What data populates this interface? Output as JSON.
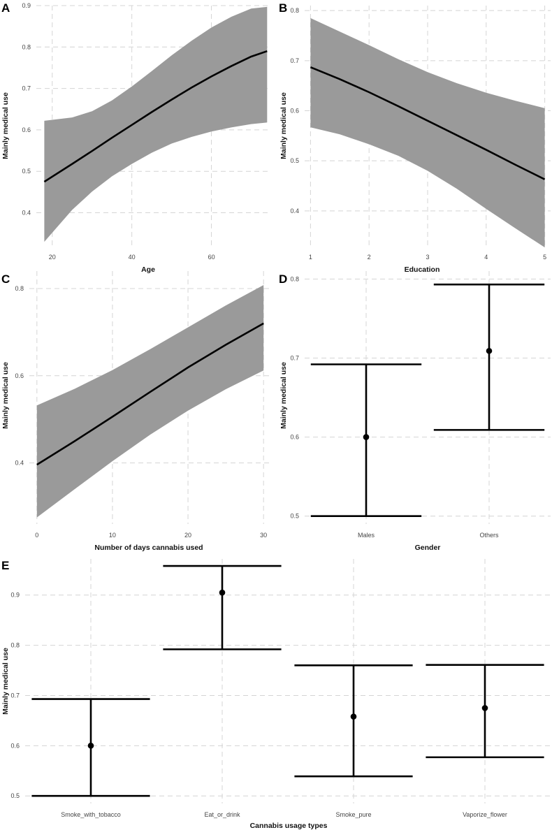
{
  "chart_data": [
    {
      "panel": "A",
      "type": "line",
      "xlabel": "Age",
      "ylabel": "Mainly medical use",
      "xlim": [
        16,
        75
      ],
      "ylim": [
        0.32,
        0.9
      ],
      "xticks": [
        20,
        40,
        60
      ],
      "yticks": [
        0.4,
        0.5,
        0.6,
        0.7,
        0.8,
        0.9
      ],
      "grid": true,
      "series": [
        {
          "x": [
            18,
            25,
            30,
            35,
            40,
            45,
            50,
            55,
            60,
            65,
            70,
            74
          ],
          "y": [
            0.475,
            0.518,
            0.549,
            0.581,
            0.612,
            0.643,
            0.673,
            0.702,
            0.729,
            0.754,
            0.777,
            0.79
          ],
          "lower": [
            0.33,
            0.407,
            0.451,
            0.488,
            0.518,
            0.545,
            0.567,
            0.583,
            0.596,
            0.606,
            0.614,
            0.618
          ],
          "upper": [
            0.622,
            0.63,
            0.645,
            0.671,
            0.705,
            0.742,
            0.78,
            0.815,
            0.847,
            0.873,
            0.893,
            0.897
          ]
        }
      ]
    },
    {
      "panel": "B",
      "type": "line",
      "xlabel": "Education",
      "ylabel": "Mainly medical use",
      "xlim": [
        0.9,
        5.1
      ],
      "ylim": [
        0.33,
        0.81
      ],
      "xticks": [
        1,
        2,
        3,
        4,
        5
      ],
      "yticks": [
        0.4,
        0.5,
        0.6,
        0.7,
        0.8
      ],
      "grid": true,
      "series": [
        {
          "x": [
            1,
            1.5,
            2,
            2.5,
            3,
            3.5,
            4,
            4.5,
            5
          ],
          "y": [
            0.687,
            0.663,
            0.637,
            0.609,
            0.58,
            0.551,
            0.522,
            0.492,
            0.463
          ],
          "lower": [
            0.567,
            0.553,
            0.533,
            0.51,
            0.48,
            0.444,
            0.404,
            0.365,
            0.327
          ],
          "upper": [
            0.785,
            0.758,
            0.731,
            0.703,
            0.677,
            0.655,
            0.636,
            0.62,
            0.605
          ]
        }
      ]
    },
    {
      "panel": "C",
      "type": "line",
      "xlabel": "Number of days cannabis used",
      "ylabel": "Mainly medical use",
      "xlim": [
        -1,
        31
      ],
      "ylim": [
        0.26,
        0.84
      ],
      "xticks": [
        0,
        10,
        20,
        30
      ],
      "yticks": [
        0.4,
        0.6,
        0.8
      ],
      "grid": true,
      "series": [
        {
          "x": [
            0,
            5,
            10,
            15,
            20,
            25,
            30
          ],
          "y": [
            0.396,
            0.45,
            0.506,
            0.563,
            0.619,
            0.671,
            0.72
          ],
          "lower": [
            0.275,
            0.34,
            0.404,
            0.465,
            0.52,
            0.569,
            0.612
          ],
          "upper": [
            0.532,
            0.57,
            0.613,
            0.661,
            0.711,
            0.761,
            0.808
          ]
        }
      ]
    },
    {
      "panel": "D",
      "type": "scatter",
      "xlabel": "Gender",
      "ylabel": "Mainly medical use",
      "categories": [
        "Males",
        "Others"
      ],
      "ylim": [
        0.49,
        0.81
      ],
      "yticks": [
        0.5,
        0.6,
        0.7,
        0.8
      ],
      "grid": true,
      "values": [
        0.6,
        0.709
      ],
      "lower": [
        0.5,
        0.609
      ],
      "upper": [
        0.692,
        0.793
      ]
    },
    {
      "panel": "E",
      "type": "scatter",
      "xlabel": "Cannabis usage types",
      "ylabel": "Mainly medical use",
      "categories": [
        "Smoke_with_tobacco",
        "Eat_or_drink",
        "Smoke_pure",
        "Vaporize_flower"
      ],
      "ylim": [
        0.485,
        0.972
      ],
      "yticks": [
        0.5,
        0.6,
        0.7,
        0.8,
        0.9
      ],
      "grid": true,
      "values": [
        0.6,
        0.905,
        0.658,
        0.675
      ],
      "lower": [
        0.5,
        0.792,
        0.539,
        0.577
      ],
      "upper": [
        0.693,
        0.958,
        0.76,
        0.761
      ]
    }
  ]
}
